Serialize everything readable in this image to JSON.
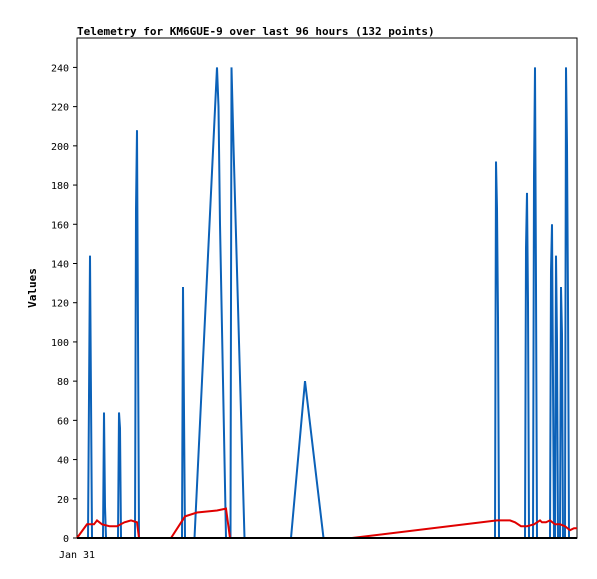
{
  "chart_data": {
    "type": "line",
    "title": "Telemetry for KM6GUE-9 over last 96 hours (132 points)",
    "ylabel": "Values",
    "xlabel": "",
    "x_tick_labels": [
      "Jan 31"
    ],
    "ylim": [
      0,
      255
    ],
    "y_ticks": [
      0,
      20,
      40,
      60,
      80,
      100,
      120,
      140,
      160,
      180,
      200,
      220,
      240
    ],
    "xlim": [
      0,
      100
    ],
    "grid": false,
    "legend": "none",
    "series": [
      {
        "color": "#0b61b8",
        "points": [
          [
            0,
            0
          ],
          [
            2.2,
            0
          ],
          [
            2.4,
            72
          ],
          [
            2.6,
            144
          ],
          [
            2.8,
            72
          ],
          [
            3.0,
            0
          ],
          [
            5.2,
            0
          ],
          [
            5.4,
            64
          ],
          [
            5.6,
            16
          ],
          [
            5.8,
            0
          ],
          [
            8.2,
            0
          ],
          [
            8.4,
            64
          ],
          [
            8.6,
            56
          ],
          [
            8.8,
            0
          ],
          [
            11.6,
            0
          ],
          [
            11.8,
            168
          ],
          [
            12.0,
            208
          ],
          [
            12.2,
            104
          ],
          [
            12.4,
            0
          ],
          [
            21.0,
            0
          ],
          [
            21.2,
            128
          ],
          [
            21.4,
            64
          ],
          [
            21.6,
            0
          ],
          [
            23.5,
            0
          ],
          [
            28.0,
            240
          ],
          [
            28.3,
            220
          ],
          [
            28.6,
            160
          ],
          [
            29.8,
            0
          ],
          [
            30.7,
            0
          ],
          [
            30.9,
            240
          ],
          [
            31.1,
            220
          ],
          [
            31.3,
            200
          ],
          [
            33.5,
            0
          ],
          [
            42.8,
            0
          ],
          [
            45.6,
            80
          ],
          [
            49.3,
            0
          ],
          [
            83.6,
            0
          ],
          [
            83.8,
            192
          ],
          [
            84.0,
            168
          ],
          [
            84.2,
            112
          ],
          [
            84.4,
            0
          ],
          [
            89.6,
            0
          ],
          [
            89.8,
            148
          ],
          [
            90.0,
            176
          ],
          [
            90.2,
            120
          ],
          [
            90.4,
            0
          ],
          [
            91.2,
            0
          ],
          [
            91.4,
            184
          ],
          [
            91.6,
            240
          ],
          [
            91.8,
            128
          ],
          [
            92.0,
            0
          ],
          [
            94.6,
            0
          ],
          [
            94.8,
            136
          ],
          [
            95.0,
            160
          ],
          [
            95.2,
            80
          ],
          [
            95.4,
            0
          ],
          [
            95.6,
            0
          ],
          [
            95.8,
            144
          ],
          [
            96.0,
            100
          ],
          [
            96.2,
            0
          ],
          [
            96.6,
            0
          ],
          [
            96.8,
            128
          ],
          [
            97.0,
            104
          ],
          [
            97.2,
            0
          ],
          [
            97.6,
            0
          ],
          [
            97.8,
            240
          ],
          [
            98.0,
            200
          ],
          [
            98.2,
            120
          ],
          [
            98.4,
            0
          ],
          [
            100,
            0
          ]
        ]
      },
      {
        "color": "#e00000",
        "points": [
          [
            0,
            0
          ],
          [
            2.0,
            7
          ],
          [
            3.4,
            7
          ],
          [
            4.0,
            9
          ],
          [
            5.0,
            7
          ],
          [
            6.5,
            6
          ],
          [
            8.0,
            6
          ],
          [
            9.5,
            8
          ],
          [
            10.8,
            9
          ],
          [
            12.0,
            8
          ],
          [
            12.4,
            0
          ],
          [
            18.8,
            0
          ],
          [
            21.6,
            11
          ],
          [
            24.0,
            13
          ],
          [
            28.0,
            14
          ],
          [
            29.8,
            15
          ],
          [
            30.6,
            0
          ],
          [
            55.0,
            0
          ],
          [
            84.0,
            9
          ],
          [
            86.6,
            9
          ],
          [
            87.6,
            8
          ],
          [
            88.8,
            6
          ],
          [
            90.0,
            6
          ],
          [
            91.4,
            7
          ],
          [
            92.6,
            9
          ],
          [
            93.0,
            8
          ],
          [
            93.8,
            8
          ],
          [
            94.6,
            9
          ],
          [
            95.6,
            7
          ],
          [
            96.6,
            7
          ],
          [
            97.6,
            6
          ],
          [
            98.6,
            4
          ],
          [
            99.4,
            5
          ],
          [
            100,
            5
          ]
        ]
      },
      {
        "color": "#000000",
        "points": [
          [
            0,
            0
          ],
          [
            100,
            0
          ]
        ]
      }
    ]
  }
}
